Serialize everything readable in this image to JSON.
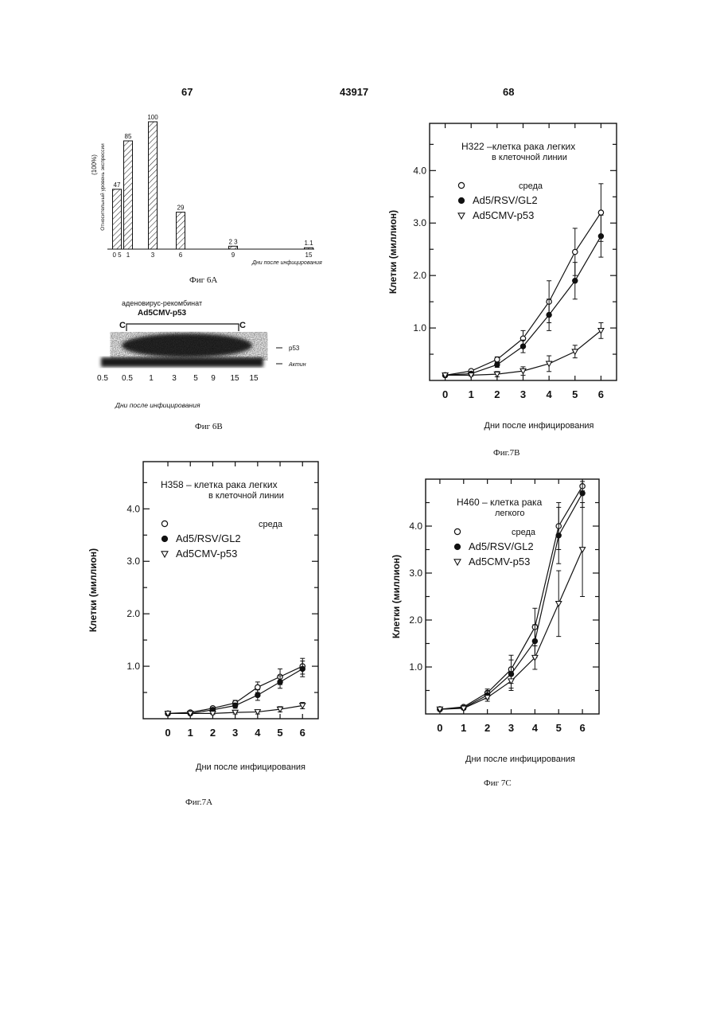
{
  "header": {
    "left_page": "67",
    "center_number": "43917",
    "right_page": "68"
  },
  "fig6a": {
    "caption": "Фиг 6А",
    "ylabel_line1": "(100%)",
    "ylabel_line2": "Относительный уровень экспрессии",
    "xlabel": "Дни после инфицирования",
    "chart_data": {
      "type": "bar",
      "x": [
        0.5,
        1,
        3,
        6,
        9,
        15
      ],
      "tick_labels": [
        "0 5",
        "1",
        "3",
        "6",
        "9",
        "15"
      ],
      "values": [
        47,
        85,
        100,
        29,
        2.3,
        1.1
      ],
      "value_labels": [
        "47",
        "85",
        "100",
        "29",
        "2 3",
        "1.1"
      ],
      "ylim": [
        0,
        100
      ]
    }
  },
  "fig6b": {
    "caption": "Фиг 6В",
    "title_line1": "аденовирус-рекомбинат",
    "title_line2": "Ad5CMV-p53",
    "bracket_left": "C",
    "bracket_right": "C",
    "band_labels": [
      "p53",
      "Актин"
    ],
    "lane_labels": [
      "0.5",
      "0.5",
      "1",
      "3",
      "5",
      "9",
      "15",
      "15"
    ],
    "xlabel": "Дни после инфицирования"
  },
  "fig7b": {
    "caption": "Фиг.7В",
    "title_line1": "H322 –клетка рака легких",
    "title_line2": "в клеточной линии",
    "ylabel": "Клетки (миллион)",
    "xlabel": "Дни после инфицирования",
    "chart_data": {
      "type": "line",
      "x": [
        0,
        1,
        2,
        3,
        4,
        5,
        6
      ],
      "xlim": [
        -0.6,
        6.6
      ],
      "ylim": [
        0,
        4.9
      ],
      "yticks": [
        "1.0",
        "2.0",
        "3.0",
        "4.0"
      ],
      "series": [
        {
          "name": "среда",
          "marker": "open-circle",
          "values": [
            0.1,
            0.18,
            0.4,
            0.8,
            1.5,
            2.45,
            3.2
          ],
          "errors": [
            0,
            0.03,
            0.05,
            0.15,
            0.4,
            0.45,
            0.55
          ]
        },
        {
          "name": "Ad5/RSV/GL2",
          "marker": "filled-circle",
          "values": [
            0.1,
            0.13,
            0.3,
            0.65,
            1.25,
            1.9,
            2.75
          ],
          "errors": [
            0,
            0.03,
            0.05,
            0.12,
            0.3,
            0.35,
            0.4
          ]
        },
        {
          "name": "Ad5CMV-p53",
          "marker": "open-triangle",
          "values": [
            0.1,
            0.1,
            0.12,
            0.18,
            0.32,
            0.55,
            0.95
          ],
          "errors": [
            0,
            0.02,
            0.05,
            0.08,
            0.15,
            0.12,
            0.15
          ]
        }
      ]
    }
  },
  "fig7a": {
    "caption": "Фиг.7А",
    "title_line1": "H358 – клетка рака легких",
    "title_line2": "в клеточной линии",
    "ylabel": "Клетки (миллион)",
    "xlabel": "Дни после инфицирования",
    "chart_data": {
      "type": "line",
      "x": [
        0,
        1,
        2,
        3,
        4,
        5,
        6
      ],
      "xlim": [
        -1.1,
        6.7
      ],
      "ylim": [
        0,
        4.9
      ],
      "yticks": [
        "1.0",
        "2.0",
        "3.0",
        "4.0"
      ],
      "series": [
        {
          "name": "среда",
          "marker": "open-circle",
          "values": [
            0.1,
            0.12,
            0.2,
            0.3,
            0.6,
            0.8,
            1.0
          ],
          "errors": [
            0,
            0.02,
            0.03,
            0.05,
            0.1,
            0.15,
            0.15
          ]
        },
        {
          "name": "Ad5/RSV/GL2",
          "marker": "filled-circle",
          "values": [
            0.1,
            0.1,
            0.17,
            0.25,
            0.45,
            0.7,
            0.95
          ],
          "errors": [
            0,
            0.02,
            0.03,
            0.05,
            0.1,
            0.12,
            0.15
          ]
        },
        {
          "name": "Ad5CMV-p53",
          "marker": "open-triangle",
          "values": [
            0.1,
            0.1,
            0.1,
            0.12,
            0.13,
            0.18,
            0.25
          ],
          "errors": [
            0,
            0.02,
            0.02,
            0.03,
            0.04,
            0.05,
            0.06
          ]
        }
      ]
    }
  },
  "fig7c": {
    "caption": "Фиг 7С",
    "title_line1": "H460 – клетка рака",
    "title_line2": "легкого",
    "ylabel": "Клетки (миллион)",
    "xlabel": "Дни после инфицирования",
    "chart_data": {
      "type": "line",
      "x": [
        0,
        1,
        2,
        3,
        4,
        5,
        6
      ],
      "xlim": [
        -0.6,
        6.7
      ],
      "ylim": [
        0,
        5.0
      ],
      "yticks": [
        "1.0",
        "2.0",
        "3.0",
        "4.0"
      ],
      "series": [
        {
          "name": "среда",
          "marker": "open-circle",
          "values": [
            0.1,
            0.15,
            0.45,
            0.95,
            1.85,
            4.0,
            4.85
          ],
          "errors": [
            0,
            0.03,
            0.08,
            0.3,
            0.4,
            0.5,
            0.1
          ]
        },
        {
          "name": "Ad5/RSV/GL2",
          "marker": "filled-circle",
          "values": [
            0.1,
            0.13,
            0.4,
            0.85,
            1.55,
            3.8,
            4.7
          ],
          "errors": [
            0,
            0.03,
            0.08,
            0.3,
            0.35,
            0.6,
            0.3
          ]
        },
        {
          "name": "Ad5CMV-p53",
          "marker": "open-triangle",
          "values": [
            0.1,
            0.12,
            0.35,
            0.7,
            1.2,
            2.35,
            3.5
          ],
          "errors": [
            0,
            0.03,
            0.08,
            0.2,
            0.25,
            0.7,
            1.0
          ]
        }
      ]
    }
  }
}
